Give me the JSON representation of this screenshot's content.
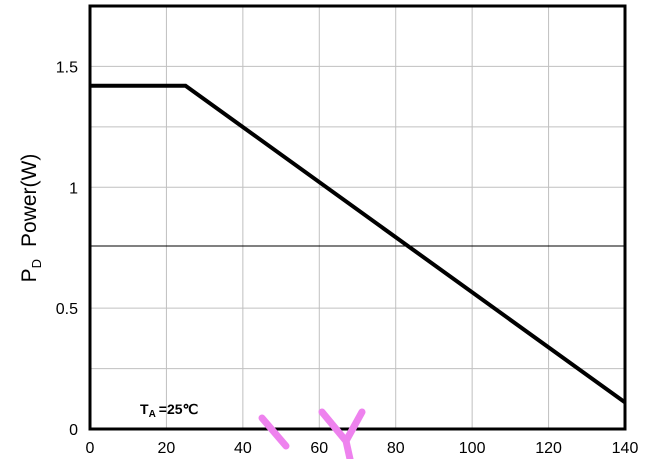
{
  "chart_data": {
    "type": "line",
    "xlabel": "",
    "ylabel": {
      "symbol": "P",
      "subscript": "D",
      "text": "Power(W)"
    },
    "xlim": [
      0,
      140
    ],
    "ylim": [
      0,
      1.75
    ],
    "xticks": [
      "0",
      "20",
      "40",
      "60",
      "80",
      "100",
      "120",
      "140"
    ],
    "yticks": [
      "0",
      "0.5",
      "1",
      "1.5"
    ],
    "xtick_values": [
      0,
      20,
      40,
      60,
      80,
      100,
      120,
      140
    ],
    "ytick_values": [
      0,
      0.5,
      1,
      1.5
    ],
    "grid": true,
    "series": [
      {
        "x": [
          0,
          25,
          140
        ],
        "y": [
          1.42,
          1.42,
          0.11
        ]
      }
    ],
    "annotation": {
      "symbol": "T",
      "subscript": "A",
      "text": "=25℃"
    },
    "colors": {
      "line": "#000000",
      "grid": "#c0c0c0",
      "mid_line": "#000000",
      "watermark": "#ee82ee"
    }
  }
}
